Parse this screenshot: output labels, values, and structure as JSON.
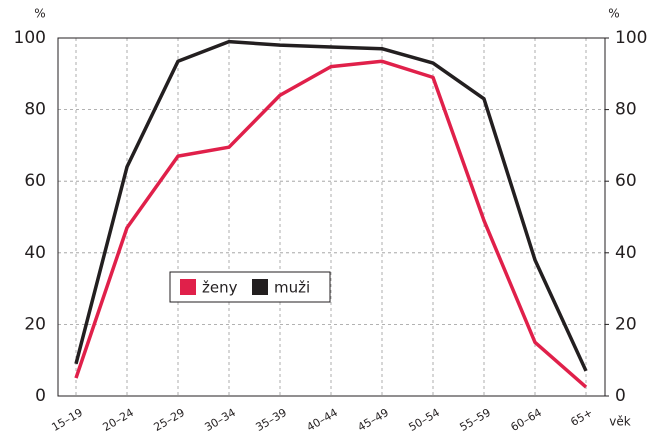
{
  "chart_data": {
    "type": "line",
    "y_label": "%",
    "y2_label": "%",
    "x_label": "věk",
    "categories": [
      "15–19",
      "20–24",
      "25–29",
      "30–34",
      "35–39",
      "40–44",
      "45–49",
      "50–54",
      "55–59",
      "60–64",
      "65+"
    ],
    "series": [
      {
        "name": "ženy",
        "color": "#e0204a",
        "values": [
          5,
          47,
          67,
          69.5,
          84,
          92,
          93.5,
          89,
          49,
          15,
          2.5
        ]
      },
      {
        "name": "muži",
        "color": "#231f20",
        "values": [
          9,
          64,
          93.5,
          99,
          98,
          97.5,
          97,
          93,
          83,
          38,
          7
        ]
      }
    ],
    "ylim": [
      0,
      100
    ],
    "yticks": [
      0,
      20,
      40,
      60,
      80,
      100
    ],
    "y2lim": [
      0,
      100
    ],
    "y2ticks": [
      0,
      20,
      40,
      60,
      80,
      100
    ],
    "grid": true
  }
}
